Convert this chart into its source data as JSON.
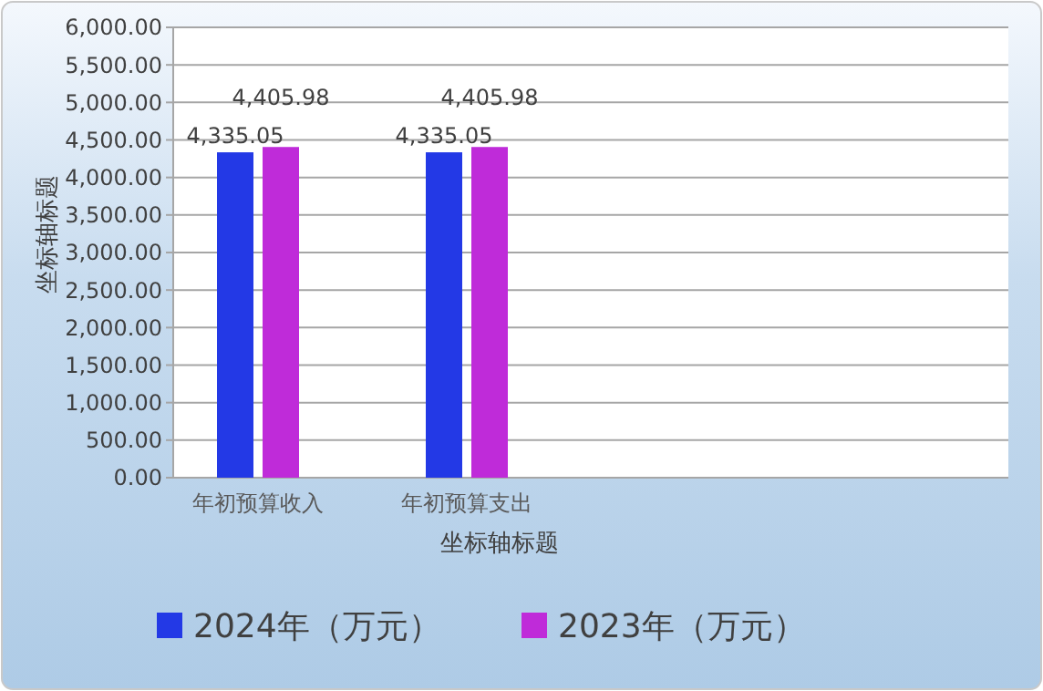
{
  "chart_data": {
    "type": "bar",
    "xlabel": "坐标轴标题",
    "ylabel": "坐标轴标题",
    "categories": [
      "年初预算收入",
      "年初预算支出",
      null,
      null
    ],
    "series": [
      {
        "name": "2024年（万元）",
        "color": "#2339e6",
        "values": [
          4335.05,
          4335.05,
          null,
          null
        ]
      },
      {
        "name": "2023年（万元）",
        "color": "#bf2bd9",
        "values": [
          4405.98,
          4405.98,
          null,
          null
        ]
      }
    ],
    "ylim": [
      0,
      6000
    ],
    "yticks": [
      {
        "value": 0,
        "label": "0.00"
      },
      {
        "value": 500,
        "label": "500.00"
      },
      {
        "value": 1000,
        "label": "1,000.00"
      },
      {
        "value": 1500,
        "label": "1,500.00"
      },
      {
        "value": 2000,
        "label": "2,000.00"
      },
      {
        "value": 2500,
        "label": "2,500.00"
      },
      {
        "value": 3000,
        "label": "3,000.00"
      },
      {
        "value": 3500,
        "label": "3,500.00"
      },
      {
        "value": 4000,
        "label": "4,000.00"
      },
      {
        "value": 4500,
        "label": "4,500.00"
      },
      {
        "value": 5000,
        "label": "5,000.00"
      },
      {
        "value": 5500,
        "label": "5,500.00"
      },
      {
        "value": 6000,
        "label": "6,000.00"
      }
    ],
    "grid": "y",
    "legend": "bottom",
    "value_labels": [
      [
        "4,335.05",
        "4,335.05",
        null,
        null
      ],
      [
        "4,405.98",
        "4,405.98",
        null,
        null
      ]
    ]
  }
}
